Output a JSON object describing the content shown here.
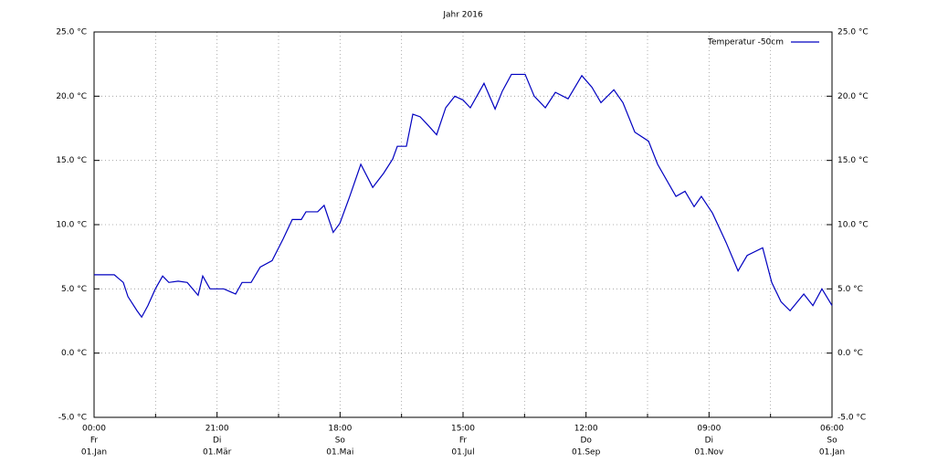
{
  "chart_data": {
    "type": "line",
    "title": "Jahr 2016",
    "series": [
      {
        "name": "Temperatur -50cm",
        "color": "#0000c0",
        "x": [
          0,
          10,
          14.5,
          16.8,
          21.3,
          23.6,
          26.7,
          30.4,
          34,
          37.1,
          41.7,
          46.2,
          51.6,
          53.9,
          57.5,
          64.3,
          70.2,
          73.4,
          77.9,
          82.4,
          88.3,
          93.8,
          98.3,
          102.8,
          105.1,
          110.9,
          114.1,
          118.6,
          121.9,
          126.8,
          132.3,
          138.2,
          143.6,
          148.1,
          150.4,
          154.9,
          158.1,
          161.7,
          165.3,
          169.9,
          174.4,
          178.9,
          183,
          186.6,
          193.4,
          198.9,
          202.5,
          207,
          213.8,
          218.3,
          223.8,
          228.8,
          235.1,
          241.9,
          246.9,
          251.4,
          257.8,
          262.3,
          268.2,
          275,
          279.5,
          288.6,
          293.1,
          297.6,
          301.2,
          306.7,
          313.5,
          319.4,
          323.9,
          331.6,
          336.1,
          340.7,
          345.2,
          352,
          356.5,
          361,
          366
        ],
        "values": [
          6.1,
          6.1,
          5.5,
          4.4,
          3.3,
          2.8,
          3.7,
          5,
          6,
          5.5,
          5.6,
          5.5,
          4.5,
          6,
          5,
          5,
          4.6,
          5.5,
          5.5,
          6.7,
          7.2,
          8.9,
          10.4,
          10.4,
          11,
          11,
          11.5,
          9.4,
          10.1,
          12.2,
          14.7,
          12.9,
          14,
          15.1,
          16.1,
          16.1,
          18.6,
          18.4,
          17.8,
          17,
          19.1,
          20,
          19.7,
          19.1,
          21,
          19,
          20.4,
          21.7,
          21.7,
          20,
          19.1,
          20.3,
          19.8,
          21.6,
          20.7,
          19.5,
          20.5,
          19.5,
          17.2,
          16.5,
          14.7,
          12.2,
          12.6,
          11.4,
          12.2,
          10.9,
          8.6,
          6.4,
          7.6,
          8.2,
          5.5,
          4,
          3.3,
          4.6,
          3.7,
          5,
          3.7
        ]
      }
    ],
    "xlim": [
      0,
      366
    ],
    "xticks": [
      {
        "value": 0,
        "label": [
          "00:00",
          "Fr",
          "01.Jan"
        ]
      },
      {
        "value": 61,
        "label": [
          "21:00",
          "Di",
          "01.Mär"
        ]
      },
      {
        "value": 122,
        "label": [
          "18:00",
          "So",
          "01.Mai"
        ]
      },
      {
        "value": 183,
        "label": [
          "15:00",
          "Fr",
          "01.Jul"
        ]
      },
      {
        "value": 244,
        "label": [
          "12:00",
          "Do",
          "01.Sep"
        ]
      },
      {
        "value": 305,
        "label": [
          "09:00",
          "Di",
          "01.Nov"
        ]
      },
      {
        "value": 366,
        "label": [
          "06:00",
          "So",
          "01.Jan"
        ]
      }
    ],
    "x_minor_ticks": [
      30.5,
      91.5,
      152.5,
      213.5,
      274.5,
      335.5
    ],
    "ylim": [
      -5,
      25
    ],
    "yticks": [
      {
        "value": -5,
        "label": "-5.0 °C"
      },
      {
        "value": 0,
        "label": "0.0 °C"
      },
      {
        "value": 5,
        "label": "5.0 °C"
      },
      {
        "value": 10,
        "label": "10.0 °C"
      },
      {
        "value": 15,
        "label": "15.0 °C"
      },
      {
        "value": 20,
        "label": "20.0 °C"
      },
      {
        "value": 25,
        "label": "25.0 °C"
      }
    ],
    "right_axis_labels": true,
    "grid": true,
    "legend": "top-right"
  }
}
